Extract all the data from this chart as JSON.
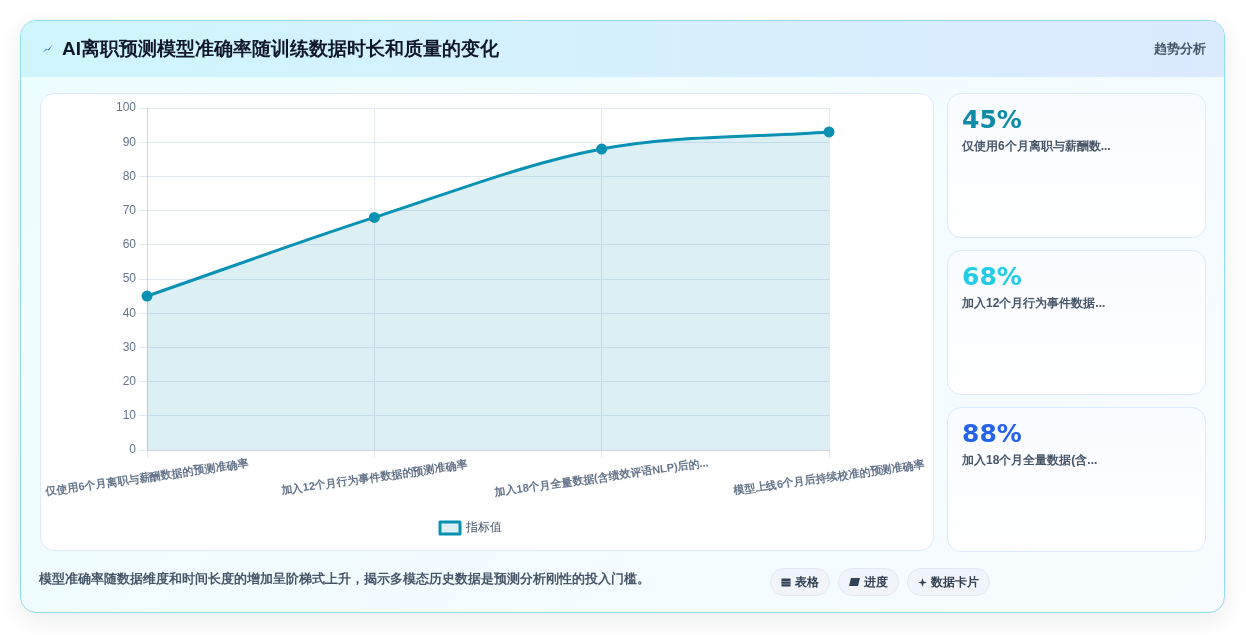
{
  "chart_data": [
    {
      "type": "area",
      "title": "AI离职预测模型准确率随训练数据时长和质量的变化",
      "categories": [
        "仅使用6个月离职与薪酬数据的预测准确率",
        "加入12个月行为事件数据的预测准确率",
        "加入18个月全量数据(含绩效评语NLP)后的...",
        "模型上线6个月后持续校准的预测准确率"
      ],
      "series": [
        {
          "name": "指标值",
          "color": "#0891b2",
          "values": [
            45,
            68,
            88,
            93
          ]
        }
      ],
      "ylim": [
        0,
        100
      ],
      "yticks": [
        0,
        10,
        20,
        30,
        40,
        50,
        60,
        70,
        80,
        90,
        100
      ],
      "grid": true,
      "legend": "bottom",
      "marker": "circle",
      "annotations": [
        "模型准确率随数据维度和时间长度的增加呈阶梯式上升，揭示多模态历史数据是预测分析刚性的投入门槛。",
        "表格",
        "进度",
        "数据卡片"
      ]
    },
    {
      "type": "other",
      "title": "趋势分析",
      "annotations": [
        "45%",
        "仅使用6个月离职与薪酬数...",
        "68%",
        "加入12个月行为事件数据...",
        "88%",
        "加入18个月全量数据(含..."
      ]
    }
  ]
}
